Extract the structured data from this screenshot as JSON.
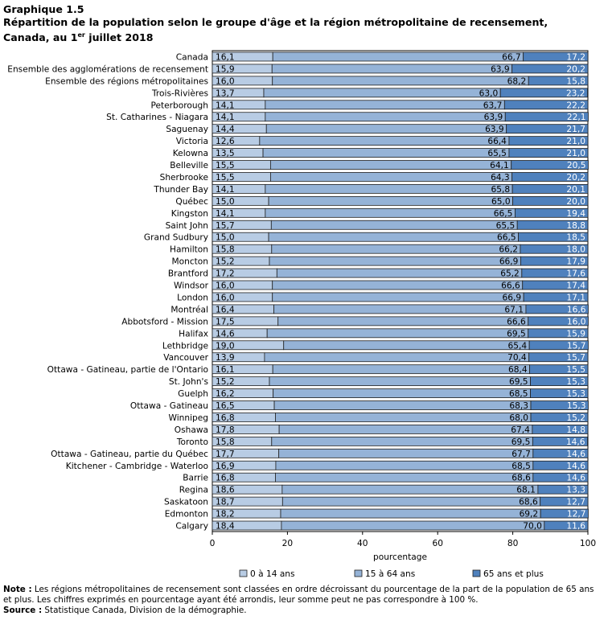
{
  "header": {
    "graph_number": "Graphique 1.5",
    "title_line1": "Répartition de la population selon le groupe d'âge et la région métropolitaine de recensement,",
    "title_line2_prefix": "Canada, au 1",
    "title_line2_sup": "er",
    "title_line2_suffix": " juillet 2018"
  },
  "chart_data": {
    "type": "bar",
    "orientation": "horizontal",
    "stacked": true,
    "categories": [
      "Canada",
      "Ensemble des agglomérations de recensement",
      "Ensemble des régions métropolitaines",
      "Trois-Rivières",
      "Peterborough",
      "St. Catharines - Niagara",
      "Saguenay",
      "Victoria",
      "Kelowna",
      "Belleville",
      "Sherbrooke",
      "Thunder Bay",
      "Québec",
      "Kingston",
      "Saint John",
      "Grand Sudbury",
      "Hamilton",
      "Moncton",
      "Brantford",
      "Windsor",
      "London",
      "Montréal",
      "Abbotsford - Mission",
      "Halifax",
      "Lethbridge",
      "Vancouver",
      "Ottawa - Gatineau, partie de l'Ontario",
      "St. John's",
      "Guelph",
      "Ottawa - Gatineau",
      "Winnipeg",
      "Oshawa",
      "Toronto",
      "Ottawa - Gatineau, partie du Québec",
      "Kitchener - Cambridge - Waterloo",
      "Barrie",
      "Regina",
      "Saskatoon",
      "Edmonton",
      "Calgary"
    ],
    "series": [
      {
        "name": "0 à 14 ans",
        "color": "#b8cce4",
        "values": [
          16.1,
          15.9,
          16.0,
          13.7,
          14.1,
          14.1,
          14.4,
          12.6,
          13.5,
          15.5,
          15.5,
          14.1,
          15.0,
          14.1,
          15.7,
          15.0,
          15.8,
          15.2,
          17.2,
          16.0,
          16.0,
          16.4,
          17.5,
          14.6,
          19.0,
          13.9,
          16.1,
          15.2,
          16.2,
          16.5,
          16.8,
          17.8,
          15.8,
          17.7,
          16.9,
          16.8,
          18.6,
          18.7,
          18.2,
          18.4
        ],
        "labels": [
          "16,1",
          "15,9",
          "16,0",
          "13,7",
          "14,1",
          "14,1",
          "14,4",
          "12,6",
          "13,5",
          "15,5",
          "15,5",
          "14,1",
          "15,0",
          "14,1",
          "15,7",
          "15,0",
          "15,8",
          "15,2",
          "17,2",
          "16,0",
          "16,0",
          "16,4",
          "17,5",
          "14,6",
          "19,0",
          "13,9",
          "16,1",
          "15,2",
          "16,2",
          "16,5",
          "16,8",
          "17,8",
          "15,8",
          "17,7",
          "16,9",
          "16,8",
          "18,6",
          "18,7",
          "18,2",
          "18,4"
        ]
      },
      {
        "name": "15 à 64 ans",
        "color": "#95b3d7",
        "values": [
          66.7,
          63.9,
          68.2,
          63.0,
          63.7,
          63.9,
          63.9,
          66.4,
          65.5,
          64.1,
          64.3,
          65.8,
          65.0,
          66.5,
          65.5,
          66.5,
          66.2,
          66.9,
          65.2,
          66.6,
          66.9,
          67.1,
          66.6,
          69.5,
          65.4,
          70.4,
          68.4,
          69.5,
          68.5,
          68.3,
          68.0,
          67.4,
          69.5,
          67.7,
          68.5,
          68.6,
          68.1,
          68.6,
          69.2,
          70.0
        ],
        "labels": [
          "66,7",
          "63,9",
          "68,2",
          "63,0",
          "63,7",
          "63,9",
          "63,9",
          "66,4",
          "65,5",
          "64,1",
          "64,3",
          "65,8",
          "65,0",
          "66,5",
          "65,5",
          "66,5",
          "66,2",
          "66,9",
          "65,2",
          "66,6",
          "66,9",
          "67,1",
          "66,6",
          "69,5",
          "65,4",
          "70,4",
          "68,4",
          "69,5",
          "68,5",
          "68,3",
          "68,0",
          "67,4",
          "69,5",
          "67,7",
          "68,5",
          "68,6",
          "68,1",
          "68,6",
          "69,2",
          "70,0"
        ]
      },
      {
        "name": "65 ans et plus",
        "color": "#4f81bd",
        "values": [
          17.2,
          20.2,
          15.8,
          23.2,
          22.2,
          22.1,
          21.7,
          21.0,
          21.0,
          20.5,
          20.2,
          20.1,
          20.0,
          19.4,
          18.8,
          18.5,
          18.0,
          17.9,
          17.6,
          17.4,
          17.1,
          16.6,
          16.0,
          15.9,
          15.7,
          15.7,
          15.5,
          15.3,
          15.3,
          15.3,
          15.2,
          14.8,
          14.6,
          14.6,
          14.6,
          14.6,
          13.3,
          12.7,
          12.7,
          11.6
        ],
        "labels": [
          "17,2",
          "20,2",
          "15,8",
          "23,2",
          "22,2",
          "22,1",
          "21,7",
          "21,0",
          "21,0",
          "20,5",
          "20,2",
          "20,1",
          "20,0",
          "19,4",
          "18,8",
          "18,5",
          "18,0",
          "17,9",
          "17,6",
          "17,4",
          "17,1",
          "16,6",
          "16,0",
          "15,9",
          "15,7",
          "15,7",
          "15,5",
          "15,3",
          "15,3",
          "15,3",
          "15,2",
          "14,8",
          "14,6",
          "14,6",
          "14,6",
          "14,6",
          "13,3",
          "12,7",
          "12,7",
          "11,6"
        ]
      }
    ],
    "xlim": [
      0,
      100
    ],
    "xticks": [
      "0",
      "20",
      "40",
      "60",
      "80",
      "100"
    ],
    "xlabel": "pourcentage",
    "grid": false,
    "legend_position": "bottom"
  },
  "notes": {
    "note_label": "Note :",
    "note_text": " Les régions métropolitaines de recensement sont classées en ordre décroissant du pourcentage de la part de la population de 65 ans et plus. Les chiffres exprimés en pourcentage ayant été arrondis, leur somme peut ne pas correspondre à 100 %.",
    "source_label": "Source :",
    "source_text": " Statistique Canada, Division de la démographie."
  }
}
